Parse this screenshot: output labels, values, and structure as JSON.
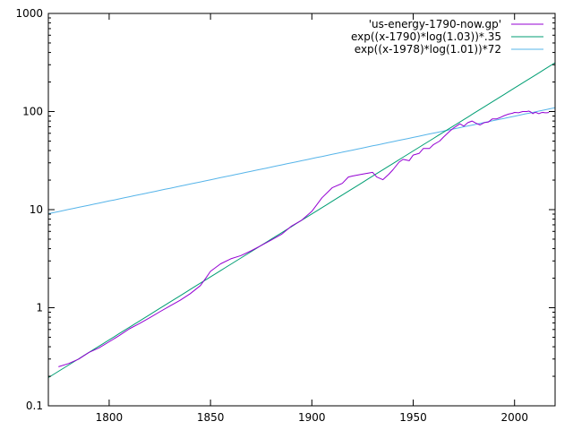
{
  "chart_data": {
    "type": "line",
    "title": "",
    "xlabel": "",
    "ylabel": "",
    "xlim": [
      1770,
      2020
    ],
    "ylim": [
      0.1,
      1000
    ],
    "yscale": "log",
    "grid": false,
    "legend_placement": "top-right",
    "x_ticks": [
      1800,
      1850,
      1900,
      1950,
      2000
    ],
    "x_tick_labels": [
      "1800",
      "1850",
      "1900",
      "1950",
      "2000"
    ],
    "y_ticks": [
      0.1,
      1,
      10,
      100,
      1000
    ],
    "y_tick_labels": [
      "0.1",
      "1",
      "10",
      "100",
      "1000"
    ],
    "series": [
      {
        "name": "'us-energy-1790-now.gp'",
        "color": "#9400d3",
        "points": [
          [
            1775,
            0.25
          ],
          [
            1780,
            0.27
          ],
          [
            1785,
            0.3
          ],
          [
            1790,
            0.35
          ],
          [
            1795,
            0.39
          ],
          [
            1800,
            0.45
          ],
          [
            1805,
            0.52
          ],
          [
            1810,
            0.61
          ],
          [
            1815,
            0.69
          ],
          [
            1820,
            0.79
          ],
          [
            1825,
            0.91
          ],
          [
            1830,
            1.04
          ],
          [
            1835,
            1.19
          ],
          [
            1840,
            1.39
          ],
          [
            1845,
            1.68
          ],
          [
            1848,
            2.05
          ],
          [
            1850,
            2.35
          ],
          [
            1855,
            2.8
          ],
          [
            1860,
            3.15
          ],
          [
            1865,
            3.4
          ],
          [
            1870,
            3.8
          ],
          [
            1875,
            4.3
          ],
          [
            1880,
            4.9
          ],
          [
            1885,
            5.6
          ],
          [
            1890,
            6.8
          ],
          [
            1895,
            7.8
          ],
          [
            1900,
            9.6
          ],
          [
            1905,
            13.2
          ],
          [
            1910,
            16.7
          ],
          [
            1915,
            18.5
          ],
          [
            1918,
            21.5
          ],
          [
            1920,
            22
          ],
          [
            1925,
            23
          ],
          [
            1930,
            24
          ],
          [
            1932,
            21.5
          ],
          [
            1935,
            20.2
          ],
          [
            1938,
            23
          ],
          [
            1940,
            25.5
          ],
          [
            1943,
            30.5
          ],
          [
            1945,
            32.5
          ],
          [
            1948,
            31.5
          ],
          [
            1950,
            36
          ],
          [
            1953,
            37.5
          ],
          [
            1955,
            42
          ],
          [
            1958,
            42
          ],
          [
            1960,
            46
          ],
          [
            1963,
            50
          ],
          [
            1965,
            55
          ],
          [
            1968,
            63
          ],
          [
            1970,
            68
          ],
          [
            1973,
            75
          ],
          [
            1975,
            71
          ],
          [
            1977,
            77
          ],
          [
            1979,
            80
          ],
          [
            1981,
            76
          ],
          [
            1983,
            73
          ],
          [
            1985,
            77
          ],
          [
            1987,
            78
          ],
          [
            1989,
            84
          ],
          [
            1991,
            84
          ],
          [
            1993,
            87
          ],
          [
            1995,
            91
          ],
          [
            1997,
            94
          ],
          [
            1999,
            96
          ],
          [
            2000,
            98
          ],
          [
            2002,
            97
          ],
          [
            2004,
            100
          ],
          [
            2006,
            100
          ],
          [
            2007,
            101
          ],
          [
            2008,
            99
          ],
          [
            2009,
            95
          ],
          [
            2010,
            98
          ],
          [
            2011,
            97
          ],
          [
            2012,
            95
          ],
          [
            2013,
            97
          ],
          [
            2014,
            98
          ],
          [
            2015,
            97
          ],
          [
            2016,
            97
          ],
          [
            2017,
            98
          ]
        ]
      },
      {
        "name": "exp((x-1790)*log(1.03))*.35",
        "color": "#009e73",
        "function": "exp((x-1790)*log(1.03))*.35"
      },
      {
        "name": "exp((x-1978)*log(1.01))*72",
        "color": "#56b4e9",
        "function": "exp((x-1978)*log(1.01))*72"
      }
    ]
  }
}
